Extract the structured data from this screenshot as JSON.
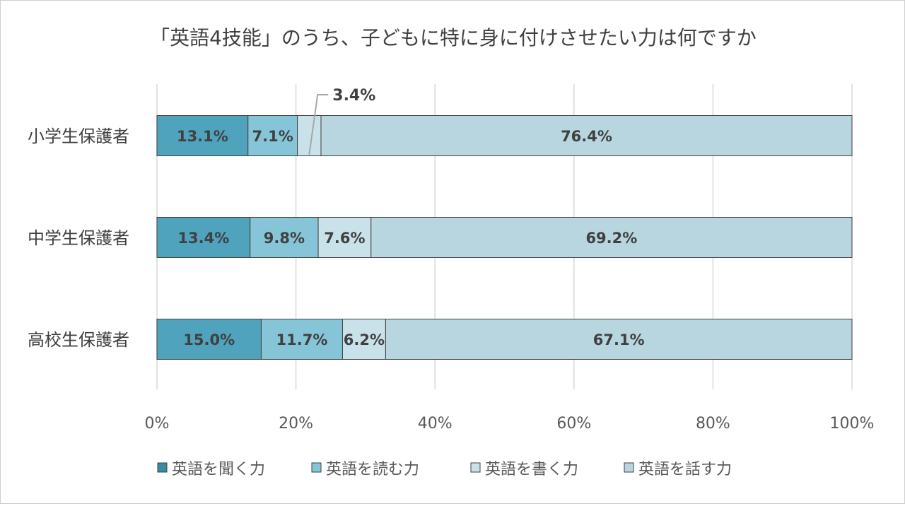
{
  "chart_data": {
    "type": "bar",
    "orientation": "horizontal",
    "stacked": "percent",
    "title": "「英語4技能」のうち、子どもに特に身に付けさせたい力は何ですか",
    "categories": [
      "小学生保護者",
      "中学生保護者",
      "高校生保護者"
    ],
    "series": [
      {
        "name": "英語を聞く力",
        "values": [
          13.1,
          13.4,
          15.0
        ],
        "labels": [
          "13.1%",
          "13.4%",
          "15.0%"
        ],
        "color": "#4fa3bd",
        "legend_color": "#3a8aa2"
      },
      {
        "name": "英語を読む力",
        "values": [
          7.1,
          9.8,
          11.7
        ],
        "labels": [
          "7.1%",
          "9.8%",
          "11.7%"
        ],
        "color": "#86c5d8",
        "legend_color": "#86c5d8"
      },
      {
        "name": "英語を書く力",
        "values": [
          3.4,
          7.6,
          6.2
        ],
        "labels": [
          "3.4%",
          "7.6%",
          "6.2%"
        ],
        "color": "#c9e2ea",
        "legend_color": "#c9e2ea"
      },
      {
        "name": "英語を話す力",
        "values": [
          76.4,
          69.2,
          67.1
        ],
        "labels": [
          "76.4%",
          "69.2%",
          "67.1%"
        ],
        "color": "#b8d6e0",
        "legend_color": "#b8d6e0"
      }
    ],
    "xlim": [
      0,
      100
    ],
    "xticks": [
      "0%",
      "20%",
      "40%",
      "60%",
      "80%",
      "100%"
    ],
    "grid": true,
    "legend_position": "bottom"
  }
}
